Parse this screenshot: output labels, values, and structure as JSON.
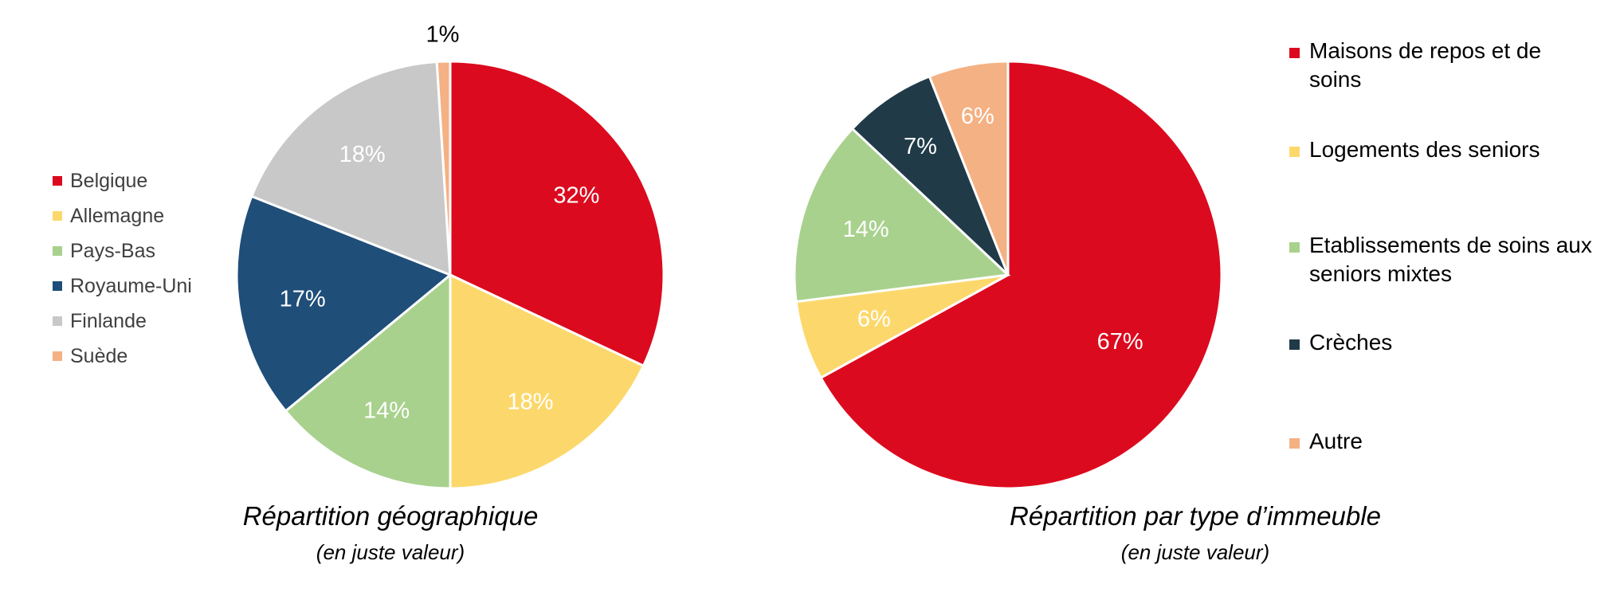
{
  "chart_data": [
    {
      "type": "pie",
      "title": "Répartition géographique",
      "subtitle": "(en juste valeur)",
      "legend_position": "left",
      "slices": [
        {
          "label": "Belgique",
          "value": 32,
          "display": "32%",
          "color": "#DC0A1F"
        },
        {
          "label": "Allemagne",
          "value": 18,
          "display": "18%",
          "color": "#FCD86C"
        },
        {
          "label": "Pays-Bas",
          "value": 14,
          "display": "14%",
          "color": "#A9D18E"
        },
        {
          "label": "Royaume-Uni",
          "value": 17,
          "display": "17%",
          "color": "#1F4E79"
        },
        {
          "label": "Finlande",
          "value": 18,
          "display": "18%",
          "color": "#C8C8C8"
        },
        {
          "label": "Suède",
          "value": 1,
          "display": "1%",
          "color": "#F4B183"
        }
      ]
    },
    {
      "type": "pie",
      "title": "Répartition par type d’immeuble",
      "subtitle": "(en juste valeur)",
      "legend_position": "right",
      "slices": [
        {
          "label": "Maisons de repos et de soins",
          "value": 67,
          "display": "67%",
          "color": "#DC0A1F"
        },
        {
          "label": "Logements des seniors",
          "value": 6,
          "display": "6%",
          "color": "#FCD86C"
        },
        {
          "label": "Etablissements de soins aux seniors mixtes",
          "value": 14,
          "display": "14%",
          "color": "#A9D18E"
        },
        {
          "label": "Crèches",
          "value": 7,
          "display": "7%",
          "color": "#203A48"
        },
        {
          "label": "Autre",
          "value": 6,
          "display": "6%",
          "color": "#F4B183"
        }
      ]
    }
  ]
}
